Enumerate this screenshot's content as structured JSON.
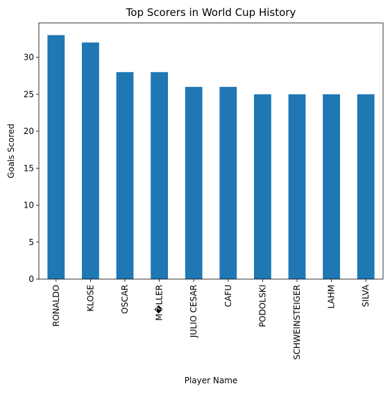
{
  "chart_data": {
    "type": "bar",
    "title": "Top Scorers in World Cup History",
    "xlabel": "Player Name",
    "ylabel": "Goals Scored",
    "categories": [
      "RONALDO",
      "KLOSE",
      "OSCAR",
      "M�LLER",
      "JULIO CESAR",
      "CAFU",
      "PODOLSKI",
      "SCHWEINSTEIGER",
      "LAHM",
      "SILVA"
    ],
    "values": [
      33,
      32,
      28,
      28,
      26,
      26,
      25,
      25,
      25,
      25
    ],
    "ylim": [
      0,
      34.65
    ],
    "yticks": [
      0,
      5,
      10,
      15,
      20,
      25,
      30
    ],
    "grid": false,
    "legend": "none",
    "bar_color": "#1f77b4"
  }
}
